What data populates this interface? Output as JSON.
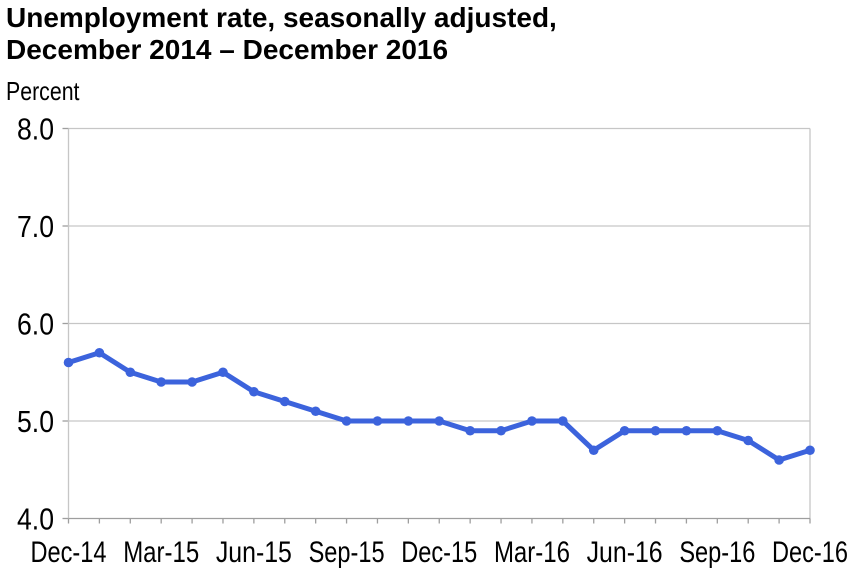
{
  "chart_data": {
    "type": "line",
    "title": "Unemployment rate, seasonally adjusted, December 2014 – December 2016",
    "title_lines": [
      "Unemployment rate, seasonally adjusted,",
      "December 2014 – December 2016"
    ],
    "ylabel": "Percent",
    "xlabel": "",
    "x": [
      "Dec-14",
      "Jan-15",
      "Feb-15",
      "Mar-15",
      "Apr-15",
      "May-15",
      "Jun-15",
      "Jul-15",
      "Aug-15",
      "Sep-15",
      "Oct-15",
      "Nov-15",
      "Dec-15",
      "Jan-16",
      "Feb-16",
      "Mar-16",
      "Apr-16",
      "May-16",
      "Jun-16",
      "Jul-16",
      "Aug-16",
      "Sep-16",
      "Oct-16",
      "Nov-16",
      "Dec-16"
    ],
    "values": [
      5.6,
      5.7,
      5.5,
      5.4,
      5.4,
      5.5,
      5.3,
      5.2,
      5.1,
      5.0,
      5.0,
      5.0,
      5.0,
      4.9,
      4.9,
      5.0,
      5.0,
      4.7,
      4.9,
      4.9,
      4.9,
      4.9,
      4.8,
      4.6,
      4.7
    ],
    "x_tick_labels": [
      "Dec-14",
      "Mar-15",
      "Jun-15",
      "Sep-15",
      "Dec-15",
      "Mar-16",
      "Jun-16",
      "Sep-16",
      "Dec-16"
    ],
    "x_tick_every": 3,
    "y_ticks": [
      4.0,
      5.0,
      6.0,
      7.0,
      8.0
    ],
    "y_tick_labels": [
      "4.0",
      "5.0",
      "6.0",
      "7.0",
      "8.0"
    ],
    "ylim": [
      4.0,
      8.0
    ],
    "grid": "horizontal",
    "legend": false,
    "colors": {
      "line": "#3C63DC",
      "grid": "#C6C6C6",
      "axis": "#9E9E9E",
      "text": "#000000",
      "background": "#FFFFFF"
    }
  }
}
